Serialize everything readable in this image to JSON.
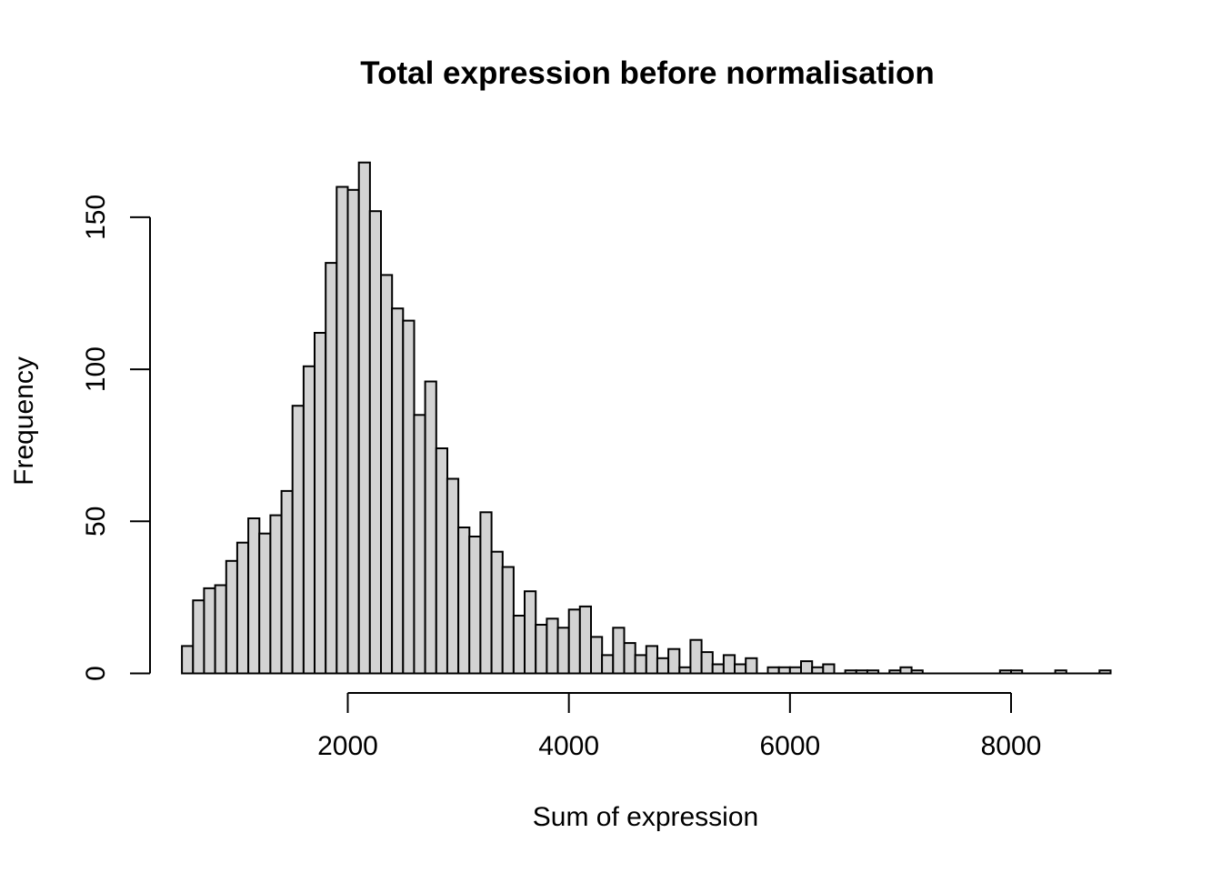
{
  "page": {
    "background": "#ffffff"
  },
  "chart_data": {
    "type": "bar",
    "subtype": "histogram",
    "title": "Total expression before normalisation",
    "xlabel": "Sum of expression",
    "ylabel": "Frequency",
    "bin_start": 500,
    "bin_width": 100,
    "counts": [
      9,
      24,
      28,
      29,
      37,
      43,
      51,
      46,
      52,
      60,
      88,
      101,
      112,
      135,
      160,
      159,
      168,
      152,
      131,
      120,
      116,
      85,
      96,
      74,
      64,
      48,
      45,
      53,
      40,
      35,
      19,
      27,
      16,
      18,
      15,
      21,
      22,
      12,
      6,
      15,
      10,
      6,
      9,
      5,
      8,
      2,
      11,
      7,
      3,
      6,
      3,
      5,
      0,
      2,
      2,
      2,
      4,
      2,
      3,
      0,
      1,
      1,
      1,
      0,
      1,
      2,
      1,
      0,
      0,
      0,
      0,
      0,
      0,
      0,
      1,
      1,
      0,
      0,
      0,
      1,
      0,
      0,
      0,
      1
    ],
    "x_ticks": [
      2000,
      4000,
      6000,
      8000
    ],
    "y_ticks": [
      0,
      50,
      100,
      150
    ],
    "xlim": [
      500,
      8900
    ],
    "ylim": [
      0,
      168
    ],
    "grid": false,
    "legend": "none",
    "bar_fill": "#d3d3d3",
    "bar_stroke": "#000000",
    "axis_color": "#000000"
  }
}
